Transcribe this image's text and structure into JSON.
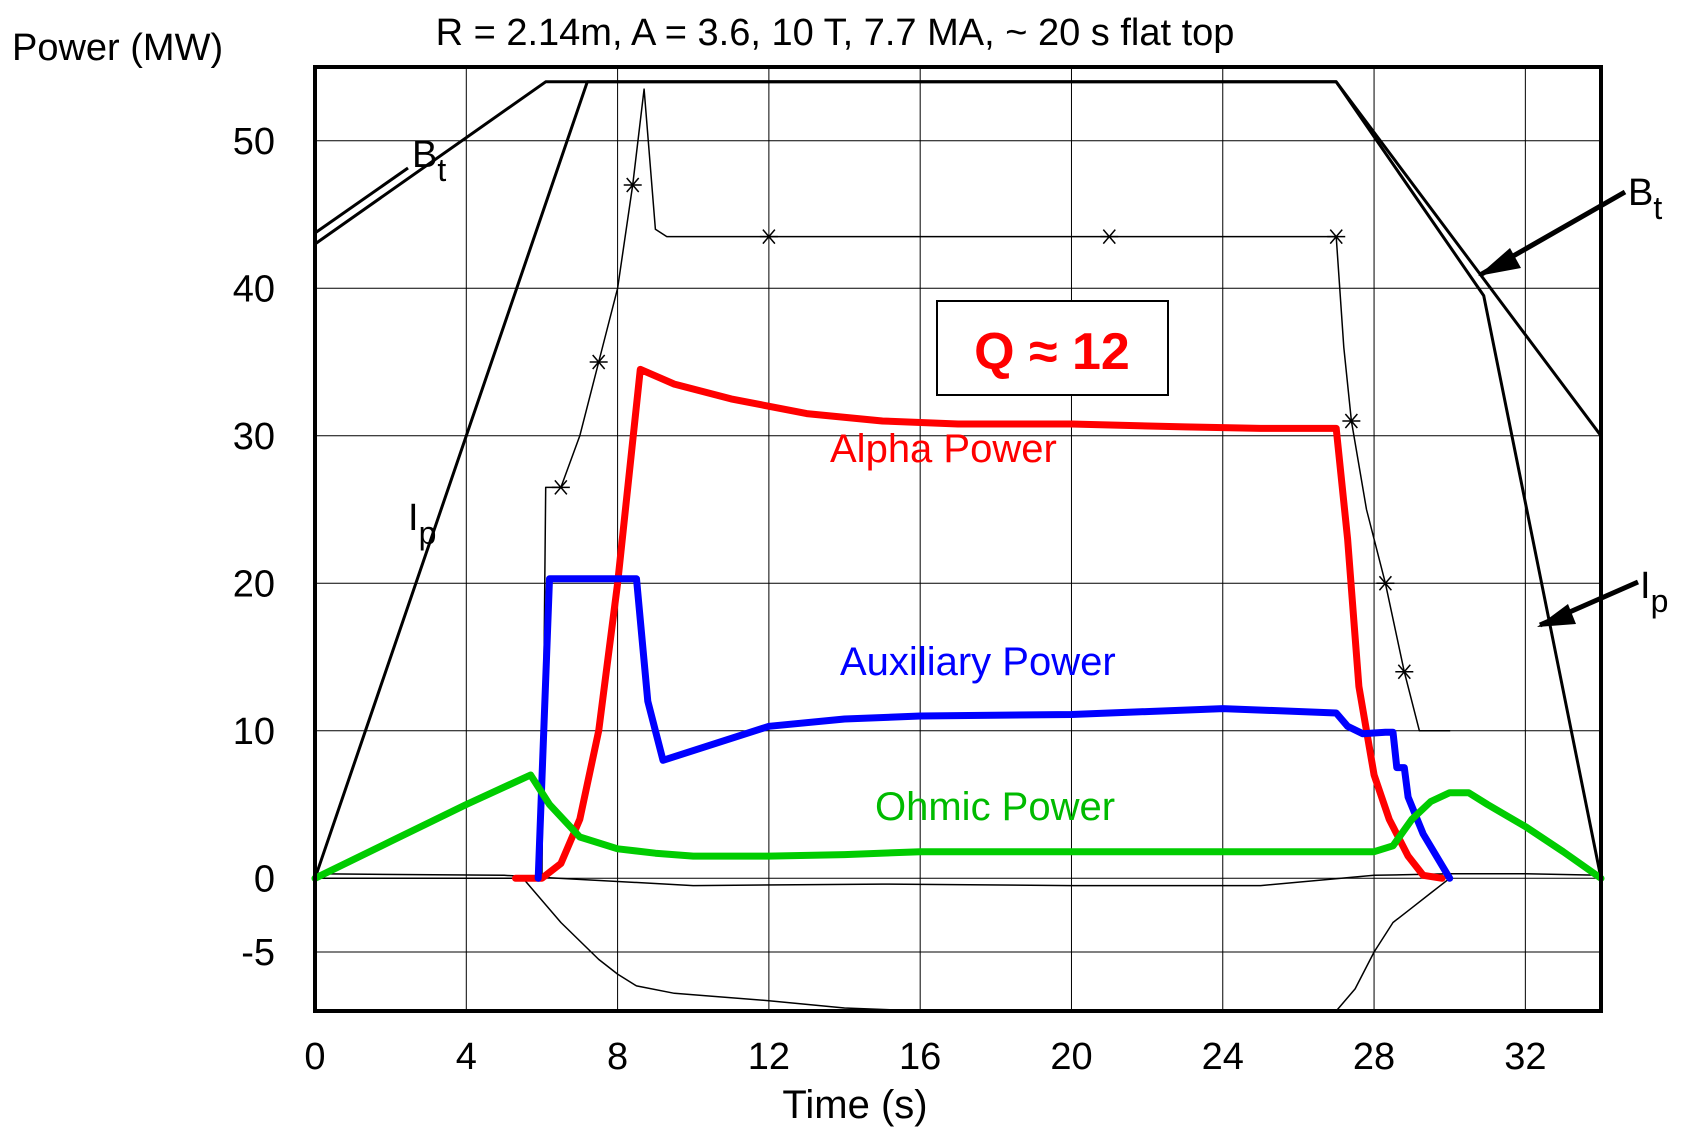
{
  "chart_data": {
    "type": "line",
    "title": "R = 2.14m, A = 3.6, 10 T, 7.7 MA, ~ 20 s flat top",
    "xlabel": "Time (s)",
    "ylabel": "Power (MW)",
    "xlim": [
      0,
      34
    ],
    "ylim": [
      -9,
      55
    ],
    "grid": true,
    "x_ticks": [
      0,
      4,
      8,
      12,
      16,
      20,
      24,
      28,
      32
    ],
    "x_tick_labels": [
      "0",
      "4",
      "8",
      "12",
      "16",
      "20",
      "24",
      "28",
      "32"
    ],
    "y_ticks": [
      -5,
      0,
      10,
      20,
      30,
      40,
      50
    ],
    "y_tick_labels": [
      "-5",
      "0",
      "10",
      "20",
      "30",
      "40",
      "50"
    ],
    "colors": {
      "alpha": "#ff0000",
      "auxiliary": "#0000ff",
      "ohmic": "#00cc00",
      "trace": "#000000"
    },
    "series": [
      {
        "name": "Alpha Power",
        "key": "alpha",
        "style": "thick",
        "x": [
          5.3,
          6.0,
          6.5,
          7.0,
          7.5,
          8.0,
          8.6,
          9.5,
          11,
          13,
          15,
          17,
          20,
          23,
          25,
          27.0,
          27.3,
          27.6,
          28.0,
          28.4,
          28.9,
          29.3,
          29.8
        ],
        "y": [
          0,
          0,
          1,
          4,
          10,
          20,
          34.5,
          33.5,
          32.5,
          31.5,
          31,
          30.8,
          30.8,
          30.6,
          30.5,
          30.5,
          23,
          13,
          7,
          4,
          1.5,
          0.2,
          0
        ]
      },
      {
        "name": "Auxiliary Power",
        "key": "auxiliary",
        "style": "thick",
        "x": [
          5.9,
          6.2,
          8.5,
          8.8,
          9.2,
          12,
          14,
          16,
          20,
          24,
          27,
          27.3,
          27.7,
          28.3,
          28.5,
          28.6,
          28.8,
          28.9,
          29.3,
          30.0
        ],
        "y": [
          0,
          20.3,
          20.3,
          12,
          8,
          10.3,
          10.8,
          11,
          11.1,
          11.5,
          11.2,
          10.3,
          9.8,
          9.9,
          9.9,
          7.5,
          7.5,
          5.5,
          3,
          0
        ]
      },
      {
        "name": "Ohmic Power",
        "key": "ohmic",
        "style": "thick",
        "x": [
          0,
          2,
          4,
          5.7,
          6.2,
          7.0,
          8.0,
          9.0,
          10,
          12,
          14,
          16,
          20,
          24,
          28,
          28.5,
          29.0,
          29.5,
          30.0,
          30.5,
          31.0,
          32,
          33,
          34
        ],
        "y": [
          0,
          2.5,
          5,
          7.0,
          5,
          2.8,
          2.0,
          1.7,
          1.5,
          1.5,
          1.6,
          1.8,
          1.8,
          1.8,
          1.8,
          2.2,
          4,
          5.2,
          5.8,
          5.8,
          5.0,
          3.5,
          1.8,
          0
        ]
      },
      {
        "name": "B_t",
        "key": "bt",
        "style": "thin",
        "x": [
          0,
          6.1,
          27.0,
          34
        ],
        "y": [
          43,
          54,
          54,
          30
        ]
      },
      {
        "name": "I_p",
        "key": "ip",
        "style": "thin",
        "x": [
          0,
          7.2,
          27.0,
          30.9,
          34
        ],
        "y": [
          0,
          54,
          54,
          39.5,
          0
        ]
      },
      {
        "name": "",
        "key": "total",
        "style": "hair",
        "x": [
          6.0,
          6.1,
          6.5,
          7.0,
          7.5,
          8.0,
          8.4,
          8.7,
          9.0,
          9.3,
          12,
          15,
          18,
          21,
          24,
          27,
          27.2,
          27.4,
          27.8,
          28.3,
          28.8,
          29.2,
          29.6,
          30.0
        ],
        "y": [
          0,
          26.5,
          26.5,
          30,
          35,
          40,
          47,
          53.5,
          44,
          43.5,
          43.5,
          43.5,
          43.5,
          43.5,
          43.5,
          43.5,
          36,
          31,
          25,
          20,
          14,
          10,
          10,
          10
        ]
      },
      {
        "name": "",
        "key": "radiation",
        "style": "hair",
        "x": [
          0,
          5.5,
          6.5,
          7.5,
          8.0,
          8.5,
          9.5,
          10.5,
          12,
          14,
          16,
          18,
          20,
          22,
          24,
          26,
          27,
          27.5,
          28.0,
          28.5,
          29.0,
          29.5,
          30.0
        ],
        "y": [
          0,
          0,
          -3,
          -5.5,
          -6.5,
          -7.3,
          -7.8,
          -8.0,
          -8.3,
          -8.8,
          -9,
          -9,
          -9,
          -9,
          -9,
          -9,
          -9,
          -7.5,
          -5,
          -3,
          -2,
          -1,
          0
        ]
      },
      {
        "name": "",
        "key": "baseline",
        "style": "hair",
        "x": [
          0,
          5,
          10,
          15,
          20,
          25,
          28,
          30,
          32,
          34
        ],
        "y": [
          0.3,
          0.2,
          -0.5,
          -0.4,
          -0.5,
          -0.5,
          0.2,
          0.3,
          0.3,
          0.2
        ]
      }
    ],
    "annotations": [
      {
        "key": "bt_left",
        "text": "B",
        "sub": "t"
      },
      {
        "key": "bt_right",
        "text": "B",
        "sub": "t"
      },
      {
        "key": "ip_left",
        "text": "I",
        "sub": "p"
      },
      {
        "key": "ip_right",
        "text": "I",
        "sub": "p"
      },
      {
        "key": "alpha_label",
        "text": "Alpha Power"
      },
      {
        "key": "aux_label",
        "text": "Auxiliary Power"
      },
      {
        "key": "ohmic_label",
        "text": "Ohmic Power"
      },
      {
        "key": "q_label",
        "text": "Q ≈ 12"
      }
    ]
  }
}
